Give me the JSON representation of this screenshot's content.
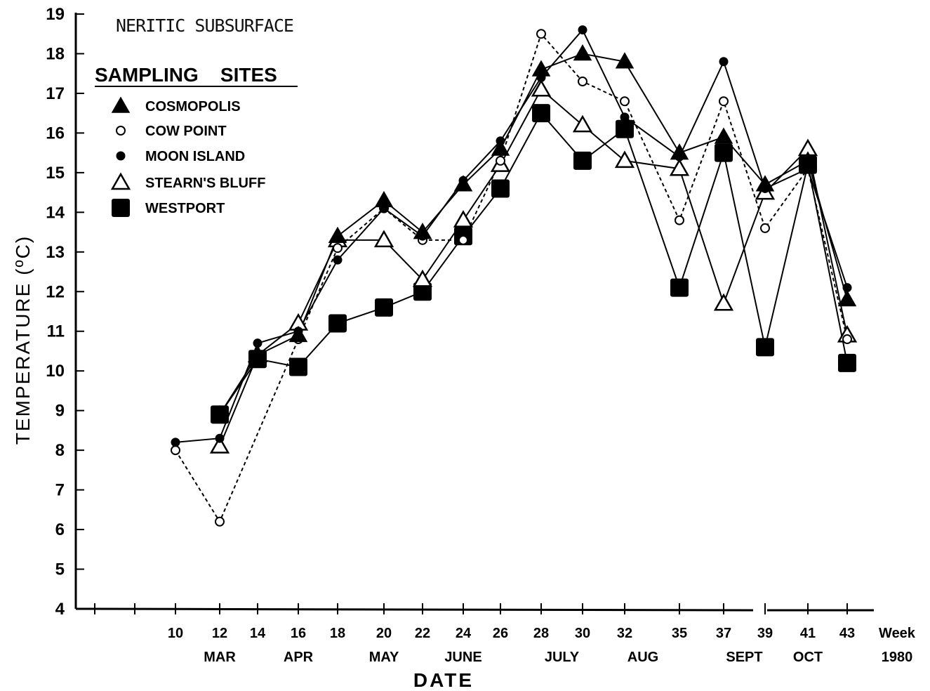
{
  "chart_data": {
    "type": "line",
    "title": "NERITIC SUBSURFACE",
    "legend_title": "SAMPLING    SITES",
    "xlabel": "DATE",
    "ylabel": "TEMPERATURE (ºC)",
    "x_unit_label": "Week",
    "year_label": "1980",
    "ylim": [
      4,
      19
    ],
    "yticks": [
      4,
      5,
      6,
      7,
      8,
      9,
      10,
      11,
      12,
      13,
      14,
      15,
      16,
      17,
      18,
      19
    ],
    "xticks": [
      10,
      12,
      14,
      16,
      18,
      20,
      22,
      24,
      26,
      28,
      30,
      32,
      35,
      37,
      39,
      41,
      43
    ],
    "months": [
      {
        "label": "MAR",
        "week": 12
      },
      {
        "label": "APR",
        "week": 16
      },
      {
        "label": "MAY",
        "week": 20
      },
      {
        "label": "JUNE",
        "week": 24
      },
      {
        "label": "JULY",
        "week": 29
      },
      {
        "label": "AUG",
        "week": 33
      },
      {
        "label": "SEPT",
        "week": 38
      },
      {
        "label": "OCT",
        "week": 41
      }
    ],
    "grid": false,
    "legend_position": "top-left",
    "series": [
      {
        "name": "COSMOPOLIS",
        "marker": "filled-triangle",
        "line": "solid",
        "points": [
          [
            12,
            8.9
          ],
          [
            14,
            10.4
          ],
          [
            16,
            10.9
          ],
          [
            18,
            13.4
          ],
          [
            20,
            14.3
          ],
          [
            22,
            13.5
          ],
          [
            24,
            14.7
          ],
          [
            26,
            15.6
          ],
          [
            28,
            17.6
          ],
          [
            30,
            18.0
          ],
          [
            32,
            17.8
          ],
          [
            35,
            15.5
          ],
          [
            37,
            15.9
          ],
          [
            39,
            14.7
          ],
          [
            41,
            15.3
          ],
          [
            43,
            11.8
          ]
        ]
      },
      {
        "name": "COW POINT",
        "marker": "open-circle",
        "line": "dotted",
        "points": [
          [
            10,
            8.0
          ],
          [
            12,
            6.2
          ],
          [
            16,
            10.8
          ],
          [
            18,
            13.1
          ],
          [
            20,
            14.1
          ],
          [
            22,
            13.3
          ],
          [
            24,
            13.3
          ],
          [
            26,
            15.3
          ],
          [
            28,
            18.5
          ],
          [
            30,
            17.3
          ],
          [
            32,
            16.8
          ],
          [
            35,
            13.8
          ],
          [
            37,
            16.8
          ],
          [
            39,
            13.6
          ],
          [
            41,
            15.1
          ],
          [
            43,
            10.8
          ]
        ]
      },
      {
        "name": "MOON ISLAND",
        "marker": "filled-circle",
        "line": "solid",
        "points": [
          [
            10,
            8.2
          ],
          [
            12,
            8.3
          ],
          [
            14,
            10.7
          ],
          [
            16,
            11.0
          ],
          [
            18,
            12.8
          ],
          [
            20,
            14.1
          ],
          [
            22,
            13.4
          ],
          [
            24,
            14.8
          ],
          [
            26,
            15.8
          ],
          [
            28,
            17.4
          ],
          [
            30,
            18.6
          ],
          [
            32,
            16.4
          ],
          [
            35,
            15.4
          ],
          [
            37,
            17.8
          ],
          [
            39,
            14.6
          ],
          [
            41,
            15.1
          ],
          [
            43,
            12.1
          ]
        ]
      },
      {
        "name": "STEARN'S BLUFF",
        "marker": "open-triangle",
        "line": "solid",
        "points": [
          [
            12,
            8.1
          ],
          [
            14,
            10.4
          ],
          [
            16,
            11.2
          ],
          [
            18,
            13.3
          ],
          [
            20,
            13.3
          ],
          [
            22,
            12.3
          ],
          [
            24,
            13.8
          ],
          [
            26,
            15.2
          ],
          [
            28,
            17.1
          ],
          [
            30,
            16.2
          ],
          [
            32,
            15.3
          ],
          [
            35,
            15.1
          ],
          [
            37,
            11.7
          ],
          [
            39,
            14.5
          ],
          [
            41,
            15.6
          ],
          [
            43,
            10.9
          ]
        ]
      },
      {
        "name": "WESTPORT",
        "marker": "filled-square",
        "line": "solid",
        "points": [
          [
            12,
            8.9
          ],
          [
            14,
            10.3
          ],
          [
            16,
            10.1
          ],
          [
            18,
            11.2
          ],
          [
            20,
            11.6
          ],
          [
            22,
            12.0
          ],
          [
            24,
            13.4
          ],
          [
            26,
            14.6
          ],
          [
            28,
            16.5
          ],
          [
            30,
            15.3
          ],
          [
            32,
            16.1
          ],
          [
            35,
            12.1
          ],
          [
            37,
            15.5
          ],
          [
            39,
            10.6
          ],
          [
            41,
            15.2
          ],
          [
            43,
            10.2
          ]
        ]
      }
    ]
  }
}
